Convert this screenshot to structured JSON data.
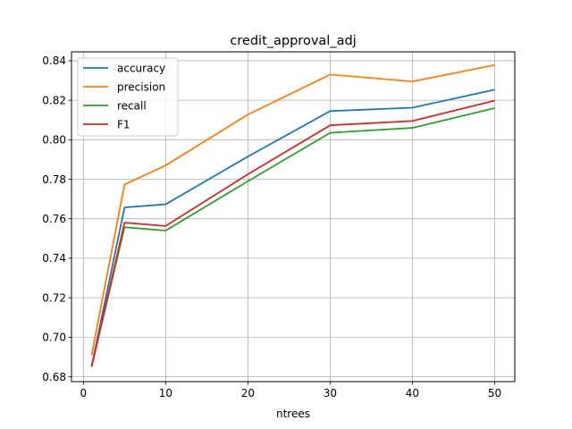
{
  "chart_data": {
    "type": "line",
    "title": "credit_approval_adj",
    "xlabel": "ntrees",
    "ylabel": "",
    "x": [
      1,
      5,
      10,
      20,
      30,
      40,
      50
    ],
    "xlim": [
      -1.45,
      52.45
    ],
    "ylim": [
      0.6775,
      0.8445
    ],
    "xticks": [
      "0",
      "10",
      "20",
      "30",
      "40",
      "50"
    ],
    "xtick_values": [
      0,
      10,
      20,
      30,
      40,
      50
    ],
    "yticks": [
      "0.68",
      "0.70",
      "0.72",
      "0.74",
      "0.76",
      "0.78",
      "0.80",
      "0.82",
      "0.84"
    ],
    "ytick_values": [
      0.68,
      0.7,
      0.72,
      0.74,
      0.76,
      0.78,
      0.8,
      0.82,
      0.84
    ],
    "grid": true,
    "legend_position": "top-left",
    "series": [
      {
        "name": "accuracy",
        "color": "#1f77b4",
        "values": [
          0.6855,
          0.7657,
          0.7673,
          0.7915,
          0.8145,
          0.8162,
          0.8253
        ]
      },
      {
        "name": "precision",
        "color": "#ff7f0e",
        "values": [
          0.691,
          0.7773,
          0.787,
          0.8127,
          0.833,
          0.8295,
          0.8378
        ]
      },
      {
        "name": "recall",
        "color": "#2ca02c",
        "values": [
          0.6853,
          0.7557,
          0.754,
          0.779,
          0.8035,
          0.806,
          0.816
        ]
      },
      {
        "name": "F1",
        "color": "#d62728",
        "values": [
          0.685,
          0.758,
          0.7563,
          0.7825,
          0.8073,
          0.8095,
          0.8198
        ]
      }
    ]
  }
}
